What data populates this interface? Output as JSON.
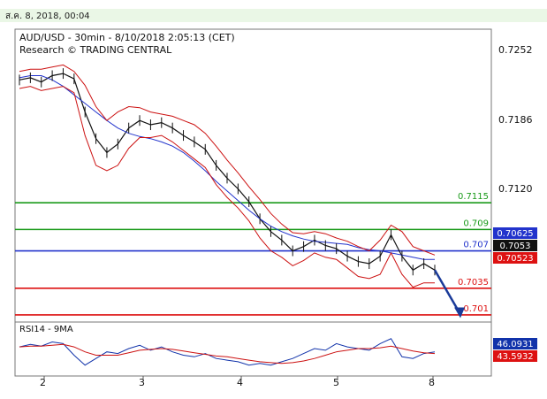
{
  "header": {
    "date_text": "ส.ค. 8, 2018, 00:04"
  },
  "chart_data": [
    {
      "type": "line",
      "title": "AUD/USD - 30min - 8/10/2018 2:05:13 (CET)",
      "subtitle": "Research © TRADING CENTRAL",
      "x_tick_labels": [
        "2",
        "3",
        "4",
        "5",
        "8"
      ],
      "y_tick_labels": [
        "0.7252",
        "0.7186",
        "0.7120"
      ],
      "ylim": [
        0.7005,
        0.7275
      ],
      "grid": false,
      "level_lines": [
        {
          "label": "0.7115",
          "value": 0.7115,
          "color": "#1a9a1a"
        },
        {
          "label": "0.709",
          "value": 0.709,
          "color": "#1a9a1a"
        },
        {
          "label": "0.707",
          "value": 0.707,
          "color": "#2233cc"
        },
        {
          "label": "0.7035",
          "value": 0.7035,
          "color": "#dd1111"
        },
        {
          "label": "0.701",
          "value": 0.701,
          "color": "#dd1111"
        }
      ],
      "price_badges": [
        {
          "label": "0.70625",
          "color": "#2233cc"
        },
        {
          "label": "0.7053",
          "color": "#111111"
        },
        {
          "label": "0.70523",
          "color": "#dd1111"
        }
      ],
      "series": [
        {
          "values": [
            0.723,
            0.7232,
            0.7228,
            0.7234,
            0.7236,
            0.7231,
            0.72,
            0.7175,
            0.7162,
            0.717,
            0.7185,
            0.7192,
            0.7188,
            0.719,
            0.7185,
            0.7178,
            0.7172,
            0.7165,
            0.715,
            0.7138,
            0.7128,
            0.7116,
            0.71,
            0.7088,
            0.708,
            0.707,
            0.7074,
            0.708,
            0.7075,
            0.7072,
            0.7065,
            0.706,
            0.7058,
            0.7065,
            0.7085,
            0.7065,
            0.7052,
            0.7058,
            0.7052
          ]
        },
        {
          "values": [
            0.7232,
            0.7234,
            0.7234,
            0.723,
            0.7224,
            0.7216,
            0.7208,
            0.72,
            0.7192,
            0.7185,
            0.718,
            0.7177,
            0.7175,
            0.7172,
            0.7168,
            0.7162,
            0.7154,
            0.7145,
            0.7135,
            0.7126,
            0.7117,
            0.7108,
            0.71,
            0.7093,
            0.7088,
            0.7084,
            0.7081,
            0.7079,
            0.7078,
            0.7077,
            0.7076,
            0.7073,
            0.7071,
            0.707,
            0.7068,
            0.7066,
            0.7064,
            0.7062,
            0.7062
          ]
        },
        {
          "values": [
            0.7238,
            0.724,
            0.724,
            0.7242,
            0.7244,
            0.7238,
            0.7225,
            0.7205,
            0.7192,
            0.72,
            0.7205,
            0.7204,
            0.72,
            0.7198,
            0.7196,
            0.7192,
            0.7188,
            0.718,
            0.7168,
            0.7155,
            0.7143,
            0.713,
            0.7118,
            0.7105,
            0.7095,
            0.7087,
            0.7086,
            0.7088,
            0.7086,
            0.7082,
            0.7079,
            0.7074,
            0.707,
            0.708,
            0.7094,
            0.7088,
            0.7074,
            0.707,
            0.7066
          ]
        },
        {
          "values": [
            0.7222,
            0.7224,
            0.722,
            0.7222,
            0.7224,
            0.7218,
            0.7178,
            0.715,
            0.7145,
            0.715,
            0.7166,
            0.7176,
            0.7176,
            0.7178,
            0.7172,
            0.7164,
            0.7156,
            0.7148,
            0.7132,
            0.712,
            0.711,
            0.7098,
            0.7082,
            0.707,
            0.7064,
            0.7056,
            0.7061,
            0.7068,
            0.7064,
            0.7062,
            0.7054,
            0.7046,
            0.7044,
            0.7048,
            0.7068,
            0.7048,
            0.7036,
            0.704,
            0.704
          ]
        }
      ],
      "projection": {
        "from": 0.7052,
        "to": 0.7012
      }
    },
    {
      "type": "line",
      "title": "RSI14 - 9MA",
      "ylim": [
        20,
        80
      ],
      "y_tick_labels": [
        "46.0931",
        "43.5932"
      ],
      "badge_colors": [
        "#1133aa",
        "#dd1111"
      ],
      "series": [
        {
          "values": [
            52,
            55,
            53,
            58,
            56,
            42,
            30,
            38,
            46,
            44,
            50,
            54,
            48,
            52,
            46,
            42,
            40,
            44,
            38,
            36,
            34,
            30,
            32,
            30,
            34,
            38,
            44,
            50,
            48,
            56,
            52,
            50,
            48,
            56,
            62,
            40,
            38,
            44,
            46
          ]
        },
        {
          "values": [
            52,
            53,
            53,
            54,
            55,
            52,
            46,
            42,
            42,
            42,
            45,
            48,
            49,
            50,
            49,
            47,
            45,
            43,
            41,
            40,
            38,
            36,
            34,
            33,
            32,
            33,
            35,
            38,
            42,
            46,
            48,
            50,
            50,
            51,
            53,
            50,
            47,
            45,
            44
          ]
        }
      ]
    }
  ]
}
